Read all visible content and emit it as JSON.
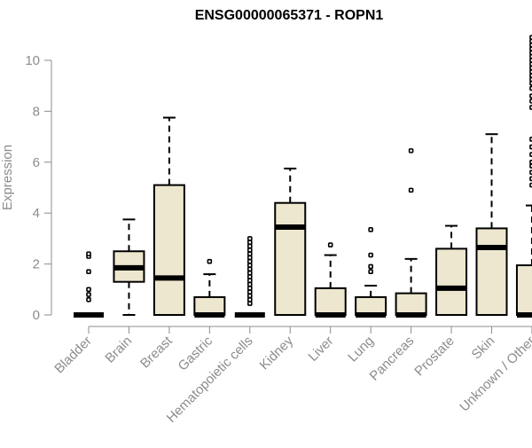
{
  "chart_data": {
    "type": "boxplot",
    "title": "ENSG00000065371 - ROPN1",
    "xlabel": "",
    "ylabel": "Expression",
    "ylim": [
      0,
      10.5
    ],
    "yticks": [
      0,
      2,
      4,
      6,
      8,
      10
    ],
    "grid": false,
    "legend": "none",
    "colors": {
      "box_fill": "#ede7cf",
      "box_stroke": "#000000",
      "axis": "#8c8c8c",
      "title": "#000000"
    },
    "categories": [
      "Bladder",
      "Brain",
      "Breast",
      "Gastric",
      "Hematopoietic cells",
      "Kidney",
      "Liver",
      "Lung",
      "Pancreas",
      "Prostate",
      "Skin",
      "Unknown / Other"
    ],
    "boxes": [
      {
        "q1": 0,
        "median": 0,
        "q3": 0,
        "whisker_low": 0,
        "whisker_high": 0,
        "outliers": [
          0.6,
          0.8,
          1.0,
          1.7,
          2.3,
          2.4
        ]
      },
      {
        "q1": 1.3,
        "median": 1.85,
        "q3": 2.5,
        "whisker_low": 0,
        "whisker_high": 3.75,
        "outliers": []
      },
      {
        "q1": 0,
        "median": 1.45,
        "q3": 5.1,
        "whisker_low": 0,
        "whisker_high": 7.75,
        "outliers": []
      },
      {
        "q1": 0,
        "median": 0,
        "q3": 0.7,
        "whisker_low": 0,
        "whisker_high": 1.6,
        "outliers": [
          2.1
        ]
      },
      {
        "q1": 0,
        "median": 0,
        "q3": 0,
        "whisker_low": 0,
        "whisker_high": 0,
        "outliers": [
          0.45,
          0.6,
          0.75,
          0.9,
          1.05,
          1.2,
          1.35,
          1.5,
          1.65,
          1.8,
          1.95,
          2.1,
          2.25,
          2.4,
          2.55,
          2.7,
          2.85,
          3.0
        ]
      },
      {
        "q1": 0,
        "median": 3.45,
        "q3": 4.4,
        "whisker_low": 0,
        "whisker_high": 5.75,
        "outliers": []
      },
      {
        "q1": 0,
        "median": 0,
        "q3": 1.05,
        "whisker_low": 0,
        "whisker_high": 2.35,
        "outliers": [
          2.75
        ]
      },
      {
        "q1": 0,
        "median": 0,
        "q3": 0.7,
        "whisker_low": 0,
        "whisker_high": 1.15,
        "outliers": [
          1.7,
          1.9,
          2.35,
          3.35
        ]
      },
      {
        "q1": 0,
        "median": 0,
        "q3": 0.85,
        "whisker_low": 0,
        "whisker_high": 2.2,
        "outliers": [
          4.9,
          6.45
        ]
      },
      {
        "q1": 0,
        "median": 1.05,
        "q3": 2.6,
        "whisker_low": 0,
        "whisker_high": 3.5,
        "outliers": []
      },
      {
        "q1": 0,
        "median": 2.65,
        "q3": 3.4,
        "whisker_low": 0,
        "whisker_high": 7.1,
        "outliers": []
      },
      {
        "q1": 0,
        "median": 0,
        "q3": 1.95,
        "whisker_low": 0,
        "whisker_high": 4.3,
        "outliers": [
          5.1,
          5.35,
          5.6,
          5.85,
          6.0,
          6.3,
          6.6,
          6.9,
          8.15,
          8.4,
          8.6,
          8.9,
          9.1,
          9.25,
          9.4,
          9.55,
          9.7,
          9.85,
          10.0,
          10.15,
          10.3,
          10.45,
          10.6,
          10.75,
          10.9
        ]
      }
    ]
  }
}
